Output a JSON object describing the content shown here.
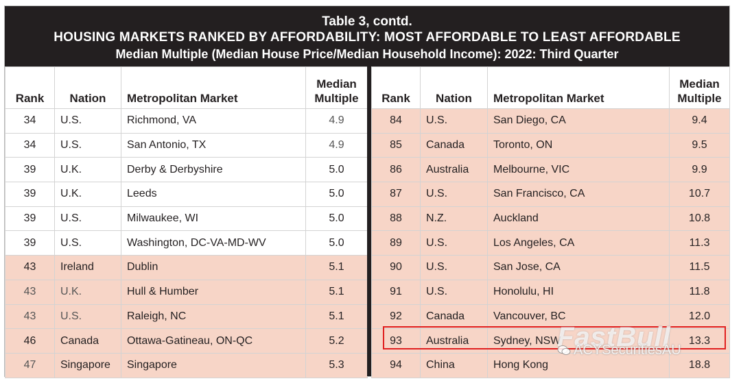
{
  "title": {
    "line1": "Table 3, contd.",
    "line2": "HOUSING MARKETS RANKED BY AFFORDABILITY: MOST AFFORDABLE TO LEAST AFFORDABLE",
    "line3": "Median Multiple (Median House Price/Median Household Income): 2022: Third Quarter"
  },
  "headers": {
    "rank": "Rank",
    "nation": "Nation",
    "market": "Metropolitan Market",
    "median_line1": "Median",
    "median_line2": "Multiple"
  },
  "left_rows": [
    {
      "rank": "34",
      "nation": "U.S.",
      "market": "Richmond, VA",
      "multiple": "4.9"
    },
    {
      "rank": "34",
      "nation": "U.S.",
      "market": "San Antonio, TX",
      "multiple": "4.9"
    },
    {
      "rank": "39",
      "nation": "U.K.",
      "market": "Derby & Derbyshire",
      "multiple": "5.0"
    },
    {
      "rank": "39",
      "nation": "U.K.",
      "market": "Leeds",
      "multiple": "5.0"
    },
    {
      "rank": "39",
      "nation": "U.S.",
      "market": "Milwaukee, WI",
      "multiple": "5.0"
    },
    {
      "rank": "39",
      "nation": "U.S.",
      "market": "Washington, DC-VA-MD-WV",
      "multiple": "5.0"
    },
    {
      "rank": "43",
      "nation": "Ireland",
      "market": "Dublin",
      "multiple": "5.1"
    },
    {
      "rank": "43",
      "nation": "U.K.",
      "market": "Hull & Humber",
      "multiple": "5.1"
    },
    {
      "rank": "43",
      "nation": "U.S.",
      "market": "Raleigh, NC",
      "multiple": "5.1"
    },
    {
      "rank": "46",
      "nation": "Canada",
      "market": "Ottawa-Gatineau, ON-QC",
      "multiple": "5.2"
    },
    {
      "rank": "47",
      "nation": "Singapore",
      "market": "Singapore",
      "multiple": "5.3"
    }
  ],
  "right_rows": [
    {
      "rank": "84",
      "nation": "U.S.",
      "market": "San Diego, CA",
      "multiple": "9.4"
    },
    {
      "rank": "85",
      "nation": "Canada",
      "market": "Toronto, ON",
      "multiple": "9.5"
    },
    {
      "rank": "86",
      "nation": "Australia",
      "market": "Melbourne, VIC",
      "multiple": "9.9"
    },
    {
      "rank": "87",
      "nation": "U.S.",
      "market": "San Francisco, CA",
      "multiple": "10.7"
    },
    {
      "rank": "88",
      "nation": "N.Z.",
      "market": "Auckland",
      "multiple": "10.8"
    },
    {
      "rank": "89",
      "nation": "U.S.",
      "market": "Los Angeles, CA",
      "multiple": "11.3"
    },
    {
      "rank": "90",
      "nation": "U.S.",
      "market": "San Jose, CA",
      "multiple": "11.5"
    },
    {
      "rank": "91",
      "nation": "U.S.",
      "market": "Honolulu, HI",
      "multiple": "11.8"
    },
    {
      "rank": "92",
      "nation": "Canada",
      "market": "Vancouver, BC",
      "multiple": "12.0"
    },
    {
      "rank": "93",
      "nation": "Australia",
      "market": "Sydney, NSW",
      "multiple": "13.3"
    },
    {
      "rank": "94",
      "nation": "China",
      "market": "Hong Kong",
      "multiple": "18.8"
    }
  ],
  "watermark": {
    "brand": "FastBull",
    "account": "ACYSecuritiesAU"
  },
  "colors": {
    "header_bg": "#231f20",
    "shade": "#f7d5c7",
    "highlight": "#e02020"
  }
}
